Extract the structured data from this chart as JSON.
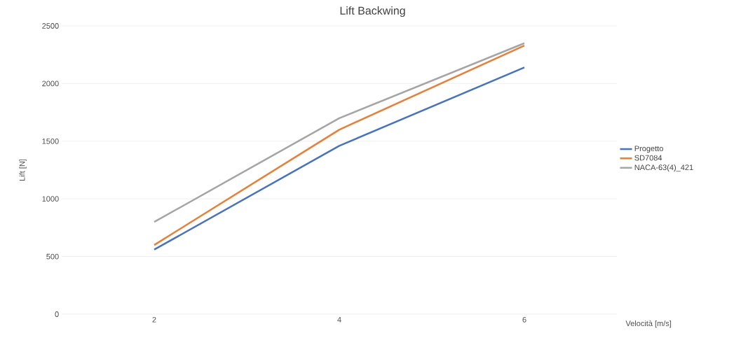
{
  "chart_data": {
    "type": "line",
    "title": "Lift Backwing",
    "xlabel": "Velocità [m/s]",
    "ylabel": "Lift [N]",
    "categories": [
      "2",
      "4",
      "6"
    ],
    "series": [
      {
        "name": "Progetto",
        "color": "#4472c4",
        "values": [
          560,
          1460,
          2140
        ]
      },
      {
        "name": "SD7084",
        "color": "#ed7d31",
        "values": [
          600,
          1600,
          2330
        ]
      },
      {
        "name": "NACA-63(4)_421",
        "color": "#a5a5a5",
        "values": [
          800,
          1700,
          2350
        ]
      }
    ],
    "ylim": [
      0,
      2500
    ],
    "yticks": [
      0,
      500,
      1000,
      1500,
      2000,
      2500
    ],
    "grid": "y",
    "legend": "right",
    "marker": "none",
    "line_style": "solid"
  }
}
